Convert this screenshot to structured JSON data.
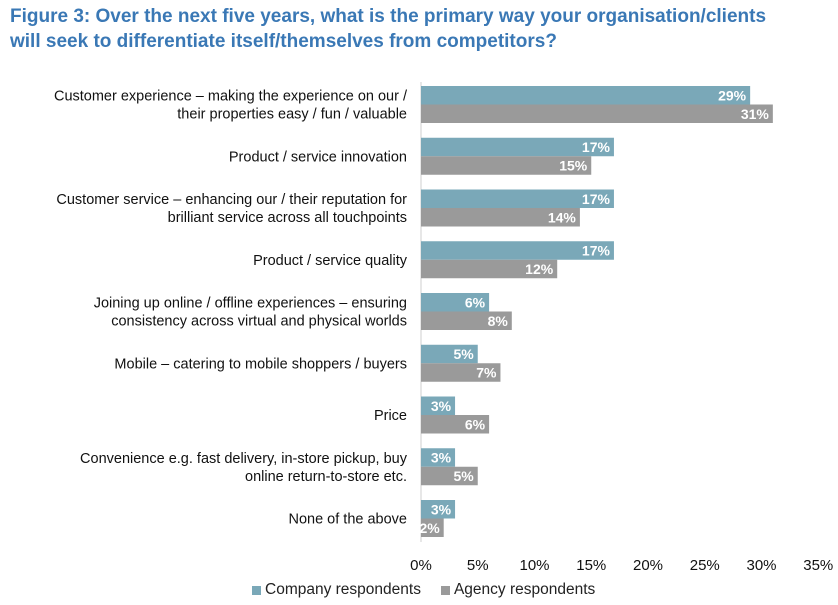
{
  "title_lines": [
    "Figure 3: Over the next five years, what is the primary way your organisation/clients",
    "will seek to differentiate itself/themselves from competitors?"
  ],
  "chart_data": {
    "type": "bar",
    "orientation": "horizontal",
    "categories": [
      [
        "Customer experience – making the experience on our /",
        "their properties easy / fun / valuable"
      ],
      [
        "Product / service innovation"
      ],
      [
        "Customer service – enhancing our / their reputation for",
        "brilliant service across all touchpoints"
      ],
      [
        "Product / service quality"
      ],
      [
        "Joining up online / offline experiences – ensuring",
        "consistency across virtual and physical worlds"
      ],
      [
        "Mobile – catering to mobile shoppers / buyers"
      ],
      [
        "Price"
      ],
      [
        "Convenience e.g. fast delivery, in-store pickup, buy",
        "online return-to-store etc."
      ],
      [
        "None of the above"
      ]
    ],
    "series": [
      {
        "name": "Company respondents",
        "color": "#7aa8b8",
        "values": [
          29,
          17,
          17,
          17,
          6,
          5,
          3,
          3,
          3
        ]
      },
      {
        "name": "Agency respondents",
        "color": "#9a9a9a",
        "values": [
          31,
          15,
          14,
          12,
          8,
          7,
          6,
          5,
          2
        ]
      }
    ],
    "value_suffix": "%",
    "xlim": [
      0,
      35
    ],
    "xticks": [
      0,
      5,
      10,
      15,
      20,
      25,
      30,
      35
    ],
    "xtick_labels": [
      "0%",
      "5%",
      "10%",
      "15%",
      "20%",
      "25%",
      "30%",
      "35%"
    ],
    "grid": false,
    "legend": "bottom"
  }
}
